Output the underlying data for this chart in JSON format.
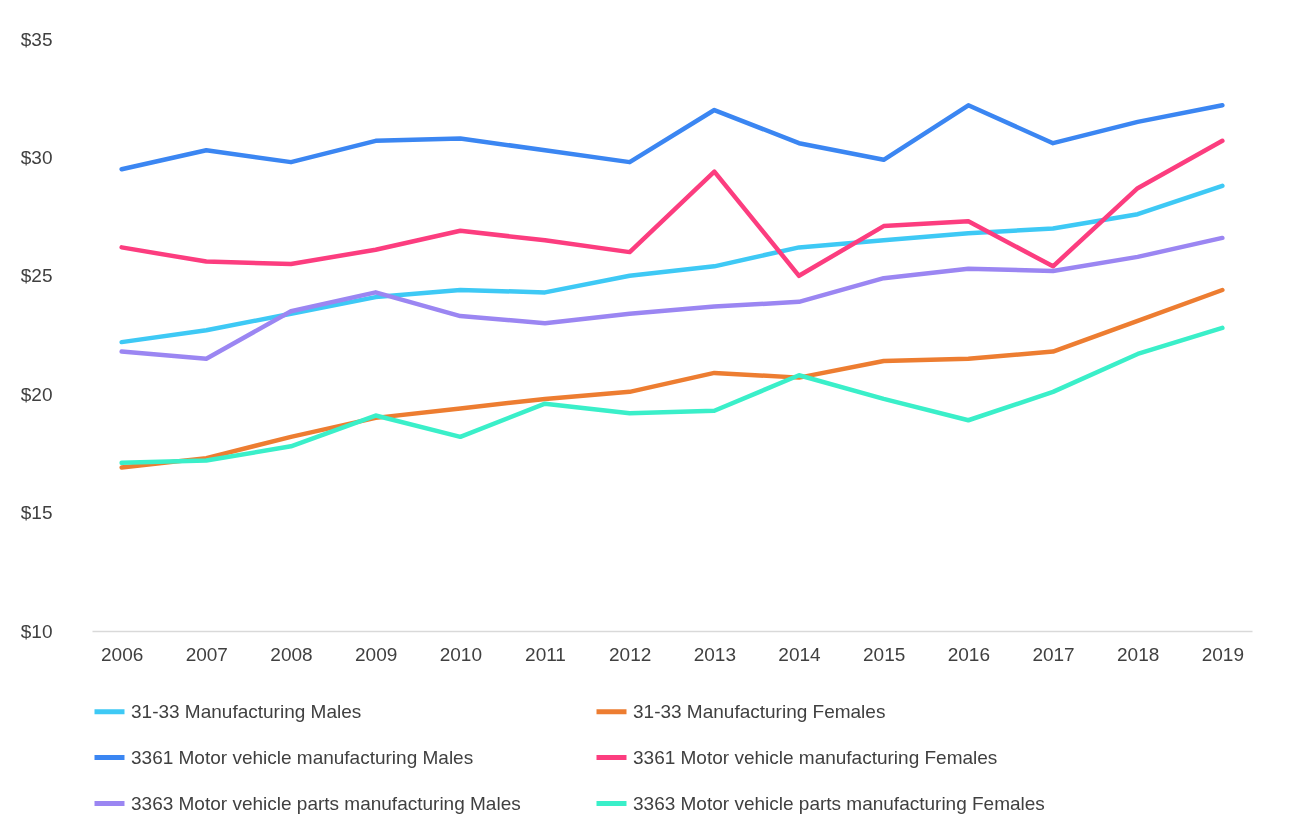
{
  "chart_data": {
    "type": "line",
    "categories": [
      "2006",
      "2007",
      "2008",
      "2009",
      "2010",
      "2011",
      "2012",
      "2013",
      "2014",
      "2015",
      "2016",
      "2017",
      "2018",
      "2019"
    ],
    "series": [
      {
        "name": "31-33 Manufacturing  Males",
        "color": "#3ec9f5",
        "values": [
          22.2,
          22.7,
          23.4,
          24.1,
          24.4,
          24.3,
          25.0,
          25.4,
          26.2,
          26.5,
          26.8,
          27.0,
          27.6,
          28.8
        ]
      },
      {
        "name": "31-33 Manufacturing  Females",
        "color": "#ed7d31",
        "values": [
          16.9,
          17.3,
          18.2,
          19.0,
          19.4,
          19.8,
          20.1,
          20.9,
          20.7,
          21.4,
          21.5,
          21.8,
          23.1,
          24.4
        ]
      },
      {
        "name": "3361 Motor vehicle manufacturing  Males",
        "color": "#3b86f2",
        "values": [
          29.5,
          30.3,
          29.8,
          30.7,
          30.8,
          30.3,
          29.8,
          32.0,
          30.6,
          29.9,
          32.2,
          30.6,
          31.5,
          32.2
        ]
      },
      {
        "name": "3361 Motor vehicle manufacturing  Females",
        "color": "#fc3d7f",
        "values": [
          26.2,
          25.6,
          25.5,
          26.1,
          26.9,
          26.5,
          26.0,
          29.4,
          25.0,
          27.1,
          27.3,
          25.4,
          28.7,
          30.7
        ]
      },
      {
        "name": "3363 Motor vehicle parts manufacturing  Males",
        "color": "#9b86f2",
        "values": [
          21.8,
          21.5,
          23.5,
          24.3,
          23.3,
          23.0,
          23.4,
          23.7,
          23.9,
          24.9,
          25.3,
          25.2,
          25.8,
          26.6
        ]
      },
      {
        "name": "3363 Motor vehicle parts manufacturing  Females",
        "color": "#3aefc9",
        "values": [
          17.1,
          17.2,
          17.8,
          19.1,
          18.2,
          19.6,
          19.2,
          19.3,
          20.8,
          19.8,
          18.9,
          20.1,
          21.7,
          22.8
        ]
      }
    ],
    "ylim": [
      10,
      35
    ],
    "yticks": [
      {
        "value": 10,
        "label": "$10"
      },
      {
        "value": 15,
        "label": "$15"
      },
      {
        "value": 20,
        "label": "$20"
      },
      {
        "value": 25,
        "label": "$25"
      },
      {
        "value": 30,
        "label": "$30"
      },
      {
        "value": 35,
        "label": "$35"
      }
    ],
    "grid": false,
    "legend": "bottom",
    "line_style": "solid"
  }
}
